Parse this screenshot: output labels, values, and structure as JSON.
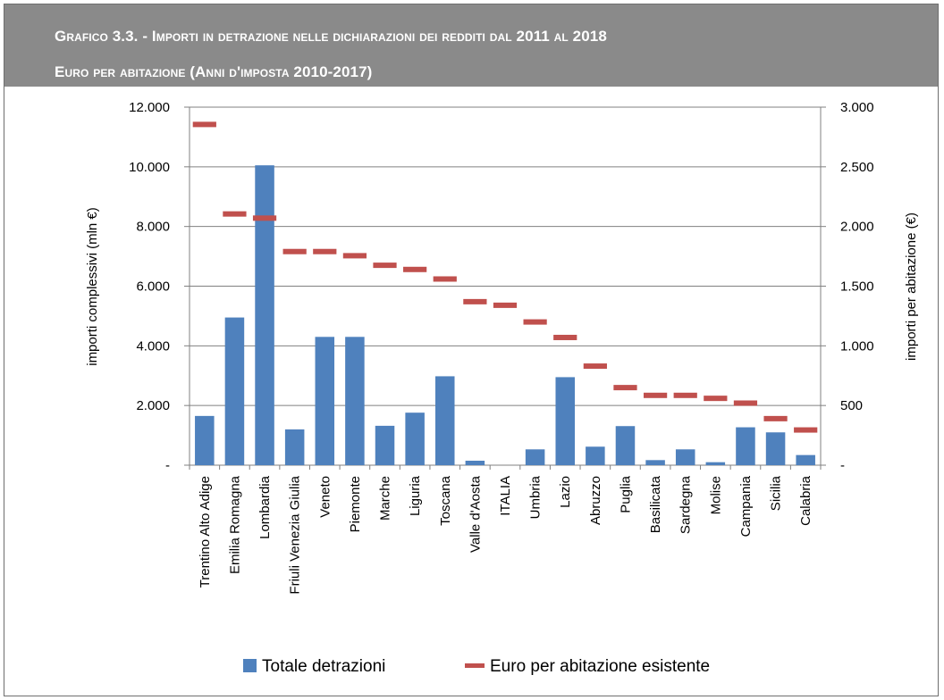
{
  "header": {
    "line1": "Grafico 3.3. - Importi in detrazione nelle dichiarazioni dei redditi dal 2011 al 2018",
    "line2": "Euro per abitazione  (Anni d'imposta 2010-2017)"
  },
  "colors": {
    "header_bg": "#8a8a8a",
    "bars": "#4f81bd",
    "line_marker": "#c0504d",
    "grid": "#808080"
  },
  "chart_data": {
    "type": "bar",
    "title": "Grafico 3.3. - Importi in detrazione nelle dichiarazioni dei redditi dal 2011 al 2018",
    "subtitle": "Euro per abitazione  (Anni d'imposta 2010-2017)",
    "categories": [
      "Trentino Alto Adige",
      "Emilia Romagna",
      "Lombardia",
      "Friuli Venezia Giulia",
      "Veneto",
      "Piemonte",
      "Marche",
      "Liguria",
      "Toscana",
      "Valle d'Aosta",
      "ITALIA",
      "Umbria",
      "Lazio",
      "Abruzzo",
      "Puglia",
      "Basilicata",
      "Sardegna",
      "Molise",
      "Campania",
      "Sicilia",
      "Calabria"
    ],
    "series": [
      {
        "name": "Totale detrazioni",
        "kind": "bar",
        "axis": "left",
        "values": [
          1650,
          4950,
          10050,
          1200,
          4300,
          4300,
          1320,
          1760,
          2980,
          150,
          0,
          530,
          2950,
          620,
          1310,
          170,
          530,
          100,
          1270,
          1100,
          340
        ]
      },
      {
        "name": "Euro per abitazione esistente",
        "kind": "marker",
        "axis": "right",
        "values": [
          2855,
          2105,
          2070,
          1790,
          1790,
          1755,
          1675,
          1640,
          1560,
          1370,
          1340,
          1200,
          1070,
          830,
          650,
          585,
          585,
          560,
          520,
          390,
          295
        ]
      }
    ],
    "ylabel": "importi complessivi (mln €)",
    "ylabel_right": "importi per abitazione (€)",
    "ylim": [
      0,
      12000
    ],
    "ylim_right": [
      0,
      3000
    ],
    "yticks": [
      0,
      2000,
      4000,
      6000,
      8000,
      10000,
      12000
    ],
    "yticks_labels": [
      "-",
      "2.000",
      "4.000",
      "6.000",
      "8.000",
      "10.000",
      "12.000"
    ],
    "yticks_right": [
      0,
      500,
      1000,
      1500,
      2000,
      2500,
      3000
    ],
    "yticks_right_labels": [
      "-",
      "500",
      "1.000",
      "1.500",
      "2.000",
      "2.500",
      "3.000"
    ],
    "grid": true,
    "legend": "bottom"
  }
}
